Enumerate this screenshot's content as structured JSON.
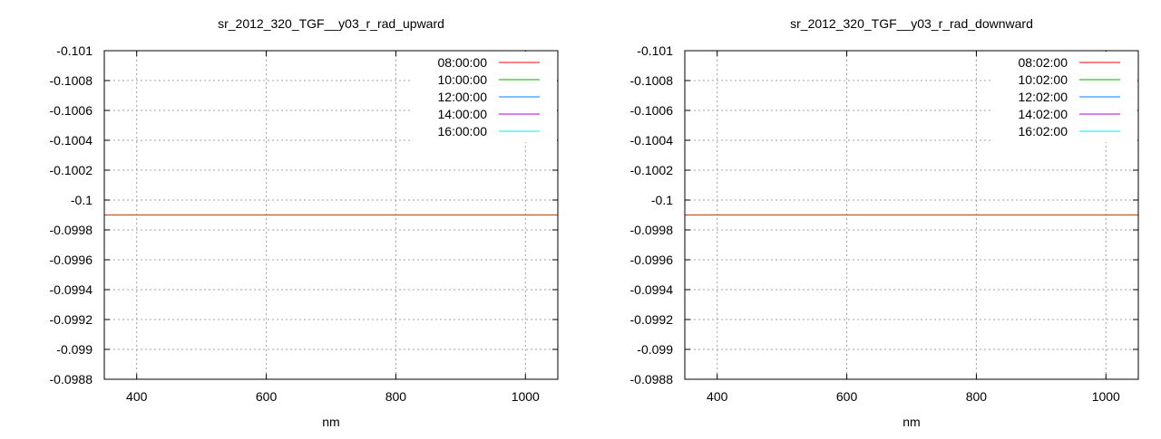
{
  "chart_data": [
    {
      "type": "line",
      "title": "sr_2012_320_TGF__y03_r_rad_upward",
      "xlabel": "nm",
      "ylabel": "",
      "xlim": [
        350,
        1050
      ],
      "ylim": [
        -0.101,
        -0.0988
      ],
      "y_axis_reversed": true,
      "x_ticks": [
        "400",
        "600",
        "800",
        "1000"
      ],
      "x_tick_values": [
        400,
        600,
        800,
        1000
      ],
      "y_ticks": [
        "-0.101",
        "-0.1008",
        "-0.1006",
        "-0.1004",
        "-0.1002",
        "-0.1",
        "-0.0998",
        "-0.0996",
        "-0.0994",
        "-0.0992",
        "-0.099",
        "-0.0988"
      ],
      "y_tick_values": [
        -0.101,
        -0.1008,
        -0.1006,
        -0.1004,
        -0.1002,
        -0.1,
        -0.0998,
        -0.0996,
        -0.0994,
        -0.0992,
        -0.099,
        -0.0988
      ],
      "grid": true,
      "legend_position": "top-right",
      "series": [
        {
          "name": "08:00:00",
          "color": "#ff0000"
        },
        {
          "name": "10:00:00",
          "color": "#00b000"
        },
        {
          "name": "12:00:00",
          "color": "#0080ff"
        },
        {
          "name": "14:00:00",
          "color": "#b000e0"
        },
        {
          "name": "16:00:00",
          "color": "#00eeee"
        }
      ],
      "lines": [
        {
          "color": "#c04000",
          "x": [
            350,
            1050
          ],
          "y": [
            -0.0999,
            -0.0999
          ]
        }
      ]
    },
    {
      "type": "line",
      "title": "sr_2012_320_TGF__y03_r_rad_downward",
      "xlabel": "nm",
      "ylabel": "",
      "xlim": [
        350,
        1050
      ],
      "ylim": [
        -0.101,
        -0.0988
      ],
      "y_axis_reversed": true,
      "x_ticks": [
        "400",
        "600",
        "800",
        "1000"
      ],
      "x_tick_values": [
        400,
        600,
        800,
        1000
      ],
      "y_ticks": [
        "-0.101",
        "-0.1008",
        "-0.1006",
        "-0.1004",
        "-0.1002",
        "-0.1",
        "-0.0998",
        "-0.0996",
        "-0.0994",
        "-0.0992",
        "-0.099",
        "-0.0988"
      ],
      "y_tick_values": [
        -0.101,
        -0.1008,
        -0.1006,
        -0.1004,
        -0.1002,
        -0.1,
        -0.0998,
        -0.0996,
        -0.0994,
        -0.0992,
        -0.099,
        -0.0988
      ],
      "grid": true,
      "legend_position": "top-right",
      "series": [
        {
          "name": "08:02:00",
          "color": "#ff0000"
        },
        {
          "name": "10:02:00",
          "color": "#00b000"
        },
        {
          "name": "12:02:00",
          "color": "#0080ff"
        },
        {
          "name": "14:02:00",
          "color": "#b000e0"
        },
        {
          "name": "16:02:00",
          "color": "#00eeee"
        }
      ],
      "lines": [
        {
          "color": "#c04000",
          "x": [
            350,
            1050
          ],
          "y": [
            -0.0999,
            -0.0999
          ]
        }
      ]
    }
  ]
}
